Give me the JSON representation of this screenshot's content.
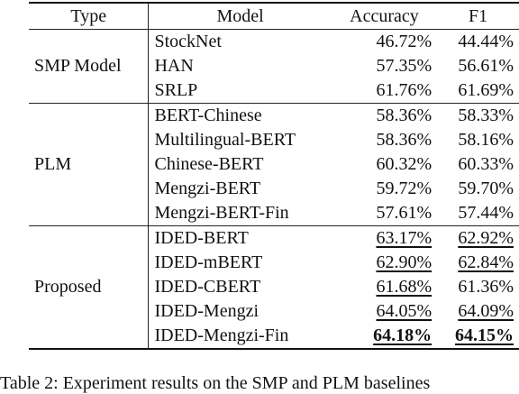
{
  "table": {
    "headers": {
      "type": "Type",
      "model": "Model",
      "accuracy": "Accuracy",
      "f1": "F1"
    },
    "groups": [
      {
        "name": "SMP Model",
        "rows": [
          {
            "model": "StockNet",
            "accuracy": "46.72%",
            "f1": "44.44%"
          },
          {
            "model": "HAN",
            "accuracy": "57.35%",
            "f1": "56.61%"
          },
          {
            "model": "SRLP",
            "accuracy": "61.76%",
            "f1": "61.69%"
          }
        ]
      },
      {
        "name": "PLM",
        "rows": [
          {
            "model": "BERT-Chinese",
            "accuracy": "58.36%",
            "f1": "58.33%"
          },
          {
            "model": "Multilingual-BERT",
            "accuracy": "58.36%",
            "f1": "58.16%"
          },
          {
            "model": "Chinese-BERT",
            "accuracy": "60.32%",
            "f1": "60.33%"
          },
          {
            "model": "Mengzi-BERT",
            "accuracy": "59.72%",
            "f1": "59.70%"
          },
          {
            "model": "Mengzi-BERT-Fin",
            "accuracy": "57.61%",
            "f1": "57.44%"
          }
        ]
      },
      {
        "name": "Proposed",
        "rows": [
          {
            "model": "IDED-BERT",
            "accuracy": "63.17%",
            "f1": "62.92%"
          },
          {
            "model": "IDED-mBERT",
            "accuracy": "62.90%",
            "f1": "62.84%"
          },
          {
            "model": "IDED-CBERT",
            "accuracy": "61.68%",
            "f1": "61.36%"
          },
          {
            "model": "IDED-Mengzi",
            "accuracy": "64.05%",
            "f1": "64.09%"
          },
          {
            "model": "IDED-Mengzi-Fin",
            "accuracy": "64.18%",
            "f1": "64.15%"
          }
        ]
      }
    ]
  },
  "caption": "Table 2: Experiment results on the SMP and PLM baselines"
}
